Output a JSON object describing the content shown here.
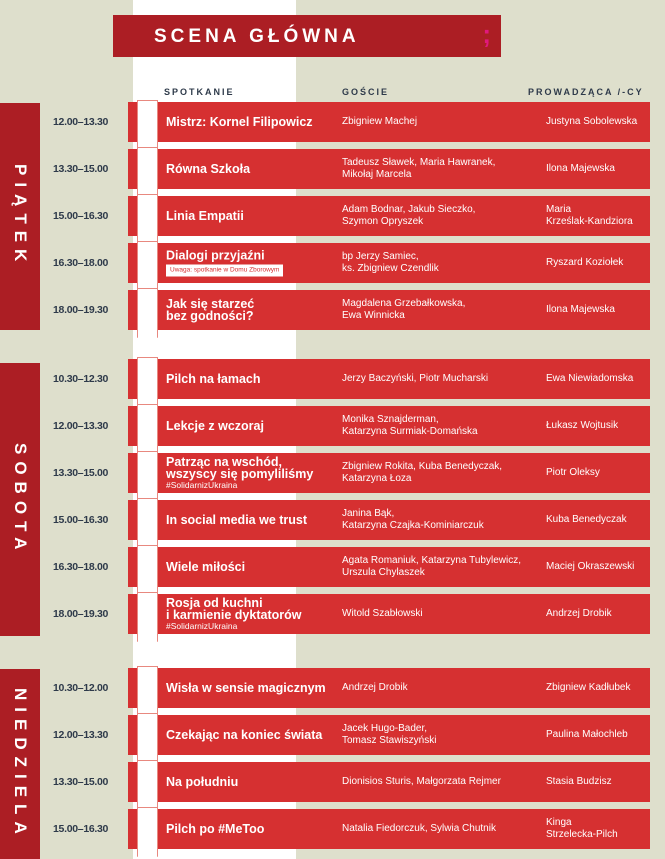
{
  "header": {
    "title": "SCENA GŁÓWNA",
    "logo_mark": ";"
  },
  "columns": {
    "meeting": "SPOTKANIE",
    "guests": "GOŚCIE",
    "host": "PROWADZĄCA /-CY"
  },
  "colors": {
    "background": "#dedfcc",
    "title_bar": "#ac1e24",
    "row": "#d63031",
    "accent": "#e0197d"
  },
  "days": [
    {
      "name": "PIĄTEK",
      "events": [
        {
          "time": "12.00–13.30",
          "title": "Mistrz: Kornel Filipowicz",
          "guests": "Zbigniew Machej",
          "host": "Justyna Sobolewska"
        },
        {
          "time": "13.30–15.00",
          "title": "Równa Szkoła",
          "guests": "Tadeusz Sławek, Maria Hawranek,\nMikołaj Marcela",
          "host": "Ilona Majewska"
        },
        {
          "time": "15.00–16.30",
          "title": "Linia Empatii",
          "guests": "Adam Bodnar, Jakub Sieczko,\nSzymon Opryszek",
          "host": "Maria\nKrześlak-Kandziora"
        },
        {
          "time": "16.30–18.00",
          "title": "Dialogi przyjaźni",
          "note": "Uwaga: spotkanie w Domu Zborowym",
          "guests": "bp Jerzy Samiec,\nks. Zbigniew Czendlik",
          "host": "Ryszard Koziołek"
        },
        {
          "time": "18.00–19.30",
          "title": "Jak się starzeć\nbez godności?",
          "guests": "Magdalena Grzebałkowska,\nEwa Winnicka",
          "host": "Ilona Majewska"
        }
      ]
    },
    {
      "name": "SOBOTA",
      "events": [
        {
          "time": "10.30–12.30",
          "title": "Pilch na łamach",
          "guests": "Jerzy Baczyński, Piotr Mucharski",
          "host": "Ewa Niewiadomska"
        },
        {
          "time": "12.00–13.30",
          "title": "Lekcje z wczoraj",
          "guests": "Monika Sznajderman,\nKatarzyna Surmiak-Domańska",
          "host": "Łukasz Wojtusik"
        },
        {
          "time": "13.30–15.00",
          "title": "Patrząc na wschód,\nwszyscy się pomyliliśmy",
          "tag": "#SolidarnizUkraina",
          "guests": "Zbigniew Rokita, Kuba Benedyczak,\nKatarzyna Łoza",
          "host": "Piotr Oleksy"
        },
        {
          "time": "15.00–16.30",
          "title": "In social media we trust",
          "guests": "Janina Bąk,\nKatarzyna Czajka-Kominiarczuk",
          "host": "Kuba Benedyczak"
        },
        {
          "time": "16.30–18.00",
          "title": "Wiele miłości",
          "guests": "Agata Romaniuk, Katarzyna Tubylewicz,\nUrszula Chylaszek",
          "host": "Maciej Okraszewski"
        },
        {
          "time": "18.00–19.30",
          "title": "Rosja od kuchni\ni karmienie dyktatorów",
          "tag": "#SolidarnizUkraina",
          "guests": "Witold Szabłowski",
          "host": "Andrzej Drobik"
        }
      ]
    },
    {
      "name": "NIEDZIELA",
      "events": [
        {
          "time": "10.30–12.00",
          "title": "Wisła w sensie magicznym",
          "guests": "Andrzej Drobik",
          "host": "Zbigniew Kadłubek"
        },
        {
          "time": "12.00–13.30",
          "title": "Czekając na koniec świata",
          "guests": "Jacek Hugo-Bader,\nTomasz Stawiszyński",
          "host": "Paulina Małochleb"
        },
        {
          "time": "13.30–15.00",
          "title": "Na południu",
          "guests": "Dionisios Sturis, Małgorzata Rejmer",
          "host": "Stasia Budzisz"
        },
        {
          "time": "15.00–16.30",
          "title": "Pilch po #MeToo",
          "guests": "Natalia Fiedorczuk, Sylwia Chutnik",
          "host": "Kinga\nStrzelecka-Pilch"
        }
      ]
    }
  ]
}
